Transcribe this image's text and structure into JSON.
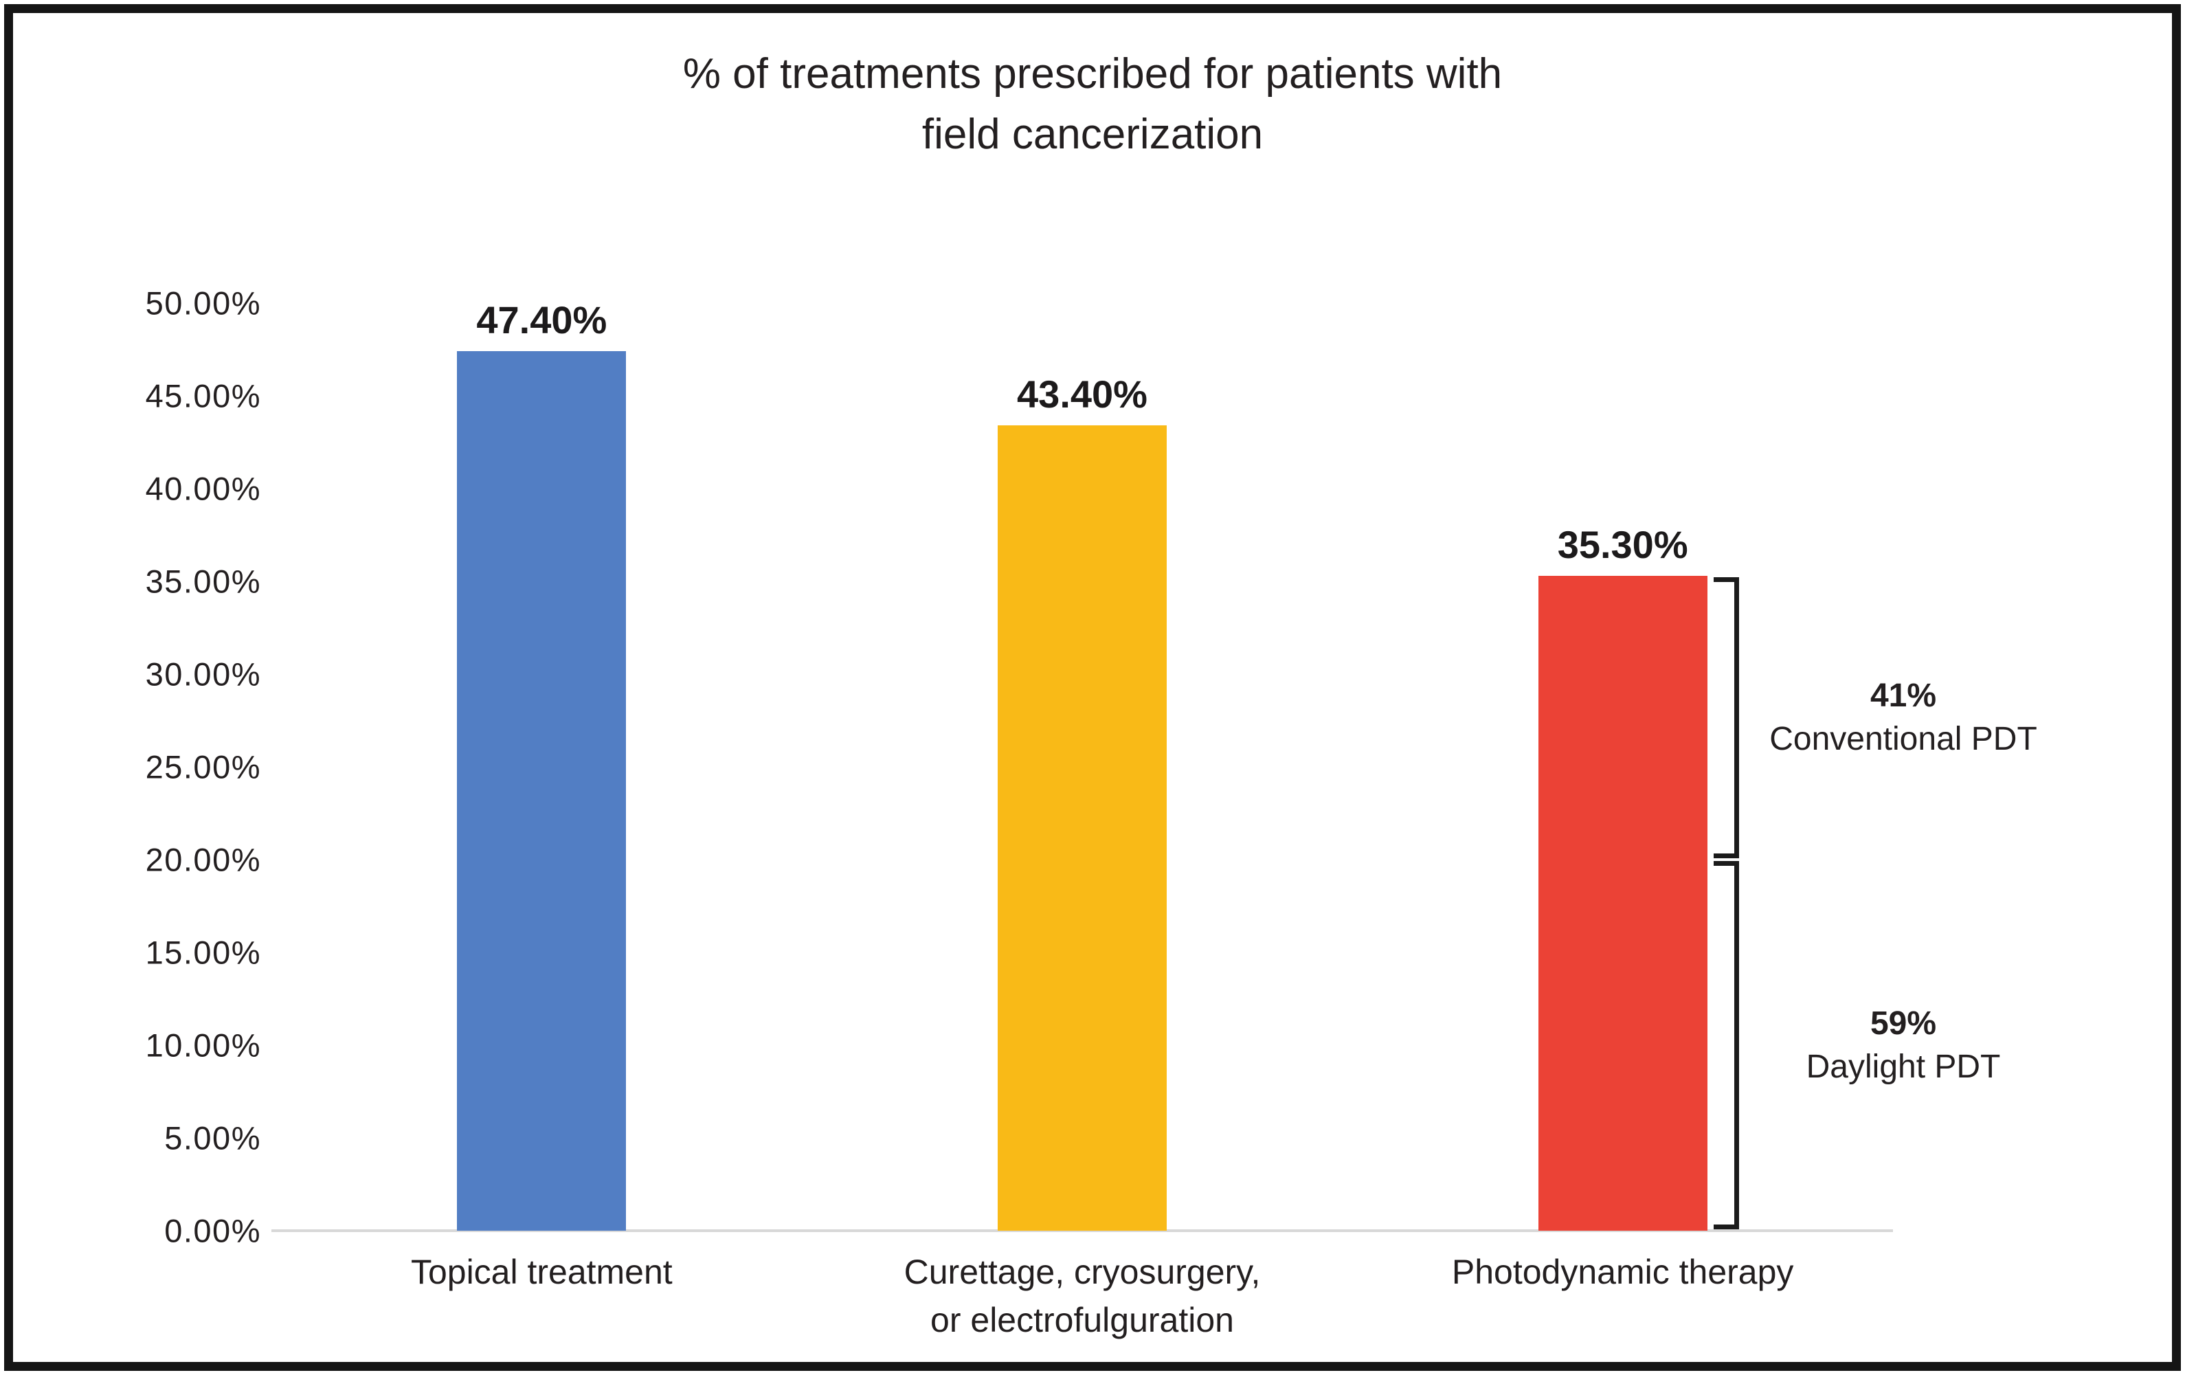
{
  "chart_data": {
    "type": "bar",
    "title": "% of treatments prescribed for patients with field cancerization",
    "title_line1": "% of treatments prescribed for patients with",
    "title_line2": "field cancerization",
    "xlabel": "",
    "ylabel": "",
    "ylim": [
      0,
      50
    ],
    "ytick_step": 5,
    "grid": false,
    "legend": "none",
    "yticks": [
      "50.00%",
      "45.00%",
      "40.00%",
      "35.00%",
      "30.00%",
      "25.00%",
      "20.00%",
      "15.00%",
      "10.00%",
      "5.00%",
      "0.00%"
    ],
    "categories": [
      "Topical treatment",
      "Curettage, cryosurgery, or electrofulguration",
      "Photodynamic therapy"
    ],
    "values": [
      47.4,
      43.4,
      35.3
    ],
    "value_labels": [
      "47.40%",
      "43.40%",
      "35.30%"
    ],
    "bars": [
      {
        "category_line1": "Topical treatment",
        "category_line2": "",
        "value": 47.4,
        "label": "47.40%",
        "color": "#527EC4",
        "color_name": "blue"
      },
      {
        "category_line1": "Curettage, cryosurgery,",
        "category_line2": "or electrofulguration",
        "value": 43.4,
        "label": "43.40%",
        "color": "#F9BA17",
        "color_name": "yellow"
      },
      {
        "category_line1": "Photodynamic therapy",
        "category_line2": "",
        "value": 35.3,
        "label": "35.30%",
        "color": "#EB4236",
        "color_name": "red"
      }
    ],
    "annotations": [
      {
        "pct": "41%",
        "label": "Conventional PDT",
        "from_value": 35.3,
        "to_value": 20
      },
      {
        "pct": "59%",
        "label": "Daylight PDT",
        "from_value": 20,
        "to_value": 0
      }
    ],
    "colors": {
      "axis_line": "#D8D8D8",
      "text": "#231f20",
      "frame_border": "#151515",
      "bracket": "#1b1b1b"
    }
  }
}
